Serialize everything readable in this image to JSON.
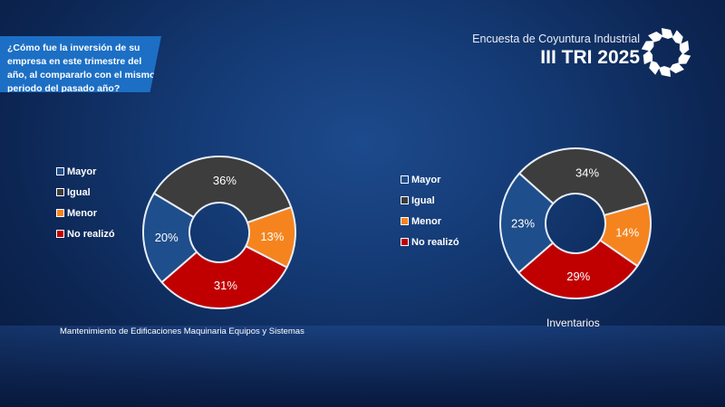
{
  "header": {
    "question": "¿Cómo fue la inversión de su empresa en este trimestre del año, al compararlo con el mismo periodo del pasado año?",
    "survey_title": "Encuesta de Coyuntura Industrial",
    "period": "III TRI 2025"
  },
  "chart_data": [
    {
      "type": "pie",
      "donut": true,
      "title": "Mantenimiento de Edificaciones Maquinaria Equipos y Sistemas",
      "categories": [
        "Mayor",
        "Igual",
        "Menor",
        "No realizó"
      ],
      "values": [
        20,
        36,
        13,
        31
      ],
      "labels": [
        "20%",
        "36%",
        "13%",
        "31%"
      ],
      "colors": [
        "#1f4e8c",
        "#3d3d3d",
        "#f5841f",
        "#c00000"
      ],
      "legend": "left"
    },
    {
      "type": "pie",
      "donut": true,
      "title": "Inventarios",
      "categories": [
        "Mayor",
        "Igual",
        "Menor",
        "No realizó"
      ],
      "values": [
        23,
        34,
        14,
        29
      ],
      "labels": [
        "23%",
        "34%",
        "14%",
        "29%"
      ],
      "colors": [
        "#1f4e8c",
        "#3d3d3d",
        "#f5841f",
        "#c00000"
      ],
      "legend": "left"
    }
  ]
}
